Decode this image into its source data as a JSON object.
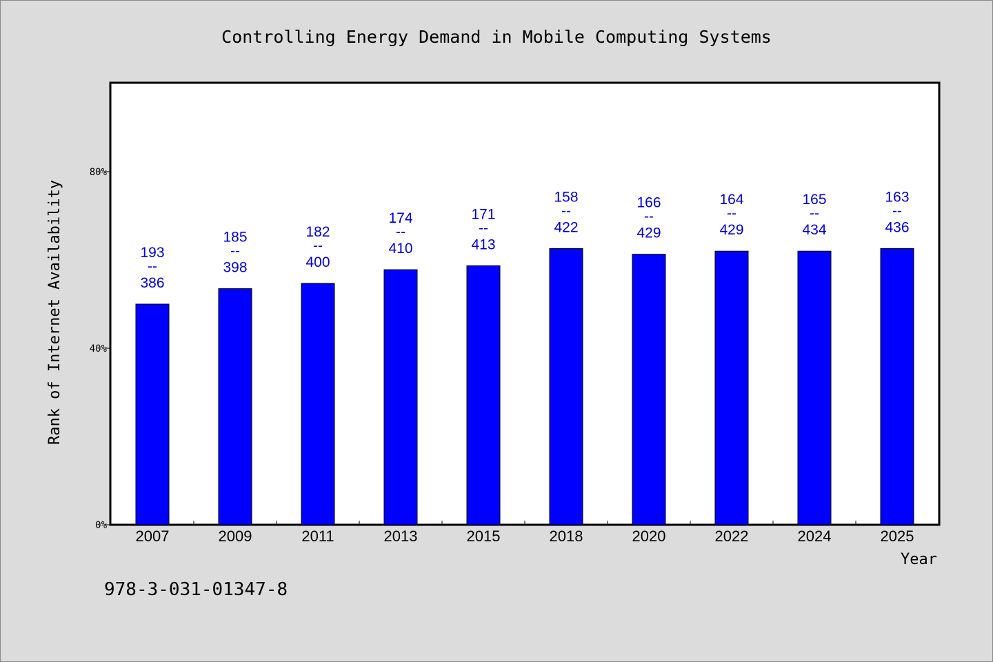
{
  "chart_data": {
    "type": "bar",
    "title": "Controlling Energy Demand in Mobile Computing Systems",
    "xlabel": "Year",
    "ylabel": "Rank of Internet Availability",
    "ylim": [
      0,
      100
    ],
    "y_ticks": [
      {
        "value": 0,
        "label": "0%"
      },
      {
        "value": 40,
        "label": "40%"
      },
      {
        "value": 80,
        "label": "80%"
      }
    ],
    "categories": [
      "2007",
      "2009",
      "2011",
      "2013",
      "2015",
      "2018",
      "2020",
      "2022",
      "2024",
      "2025"
    ],
    "values": [
      50.0,
      53.5,
      54.7,
      57.8,
      58.7,
      62.6,
      61.3,
      62.0,
      62.0,
      62.6
    ],
    "bar_labels": [
      {
        "top": "193",
        "sep": "--",
        "bottom": "386"
      },
      {
        "top": "185",
        "sep": "--",
        "bottom": "398"
      },
      {
        "top": "182",
        "sep": "--",
        "bottom": "400"
      },
      {
        "top": "174",
        "sep": "--",
        "bottom": "410"
      },
      {
        "top": "171",
        "sep": "--",
        "bottom": "413"
      },
      {
        "top": "158",
        "sep": "--",
        "bottom": "422"
      },
      {
        "top": "166",
        "sep": "--",
        "bottom": "429"
      },
      {
        "top": "164",
        "sep": "--",
        "bottom": "429"
      },
      {
        "top": "165",
        "sep": "--",
        "bottom": "434"
      },
      {
        "top": "163",
        "sep": "--",
        "bottom": "436"
      }
    ],
    "bar_color": "#0000ff",
    "label_color": "#0000cc",
    "grid": false,
    "legend": "none"
  },
  "footer_text": "978-3-031-01347-8"
}
